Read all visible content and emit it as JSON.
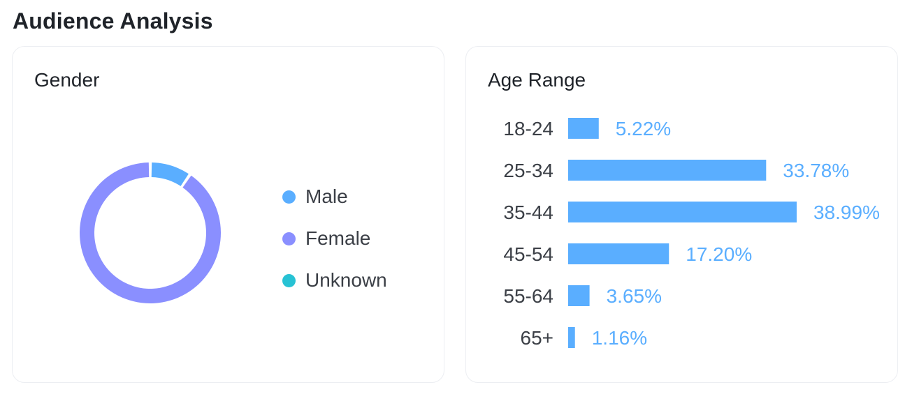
{
  "page": {
    "title": "Audience Analysis"
  },
  "colors": {
    "male": "#5aaeff",
    "female": "#8a8fff",
    "unknown": "#27c2d4",
    "bar": "#5aaeff"
  },
  "chart_data": [
    {
      "type": "pie",
      "title": "Gender",
      "categories": [
        "Male",
        "Female",
        "Unknown"
      ],
      "values": [
        9.5,
        90.5,
        0
      ],
      "legend_position": "right"
    },
    {
      "type": "bar",
      "title": "Age Range",
      "orientation": "horizontal",
      "categories": [
        "18-24",
        "25-34",
        "35-44",
        "45-54",
        "55-64",
        "65+"
      ],
      "values": [
        5.22,
        33.78,
        38.99,
        17.2,
        3.65,
        1.16
      ],
      "value_labels": [
        "5.22%",
        "33.78%",
        "38.99%",
        "17.20%",
        "3.65%",
        "1.16%"
      ]
    }
  ]
}
